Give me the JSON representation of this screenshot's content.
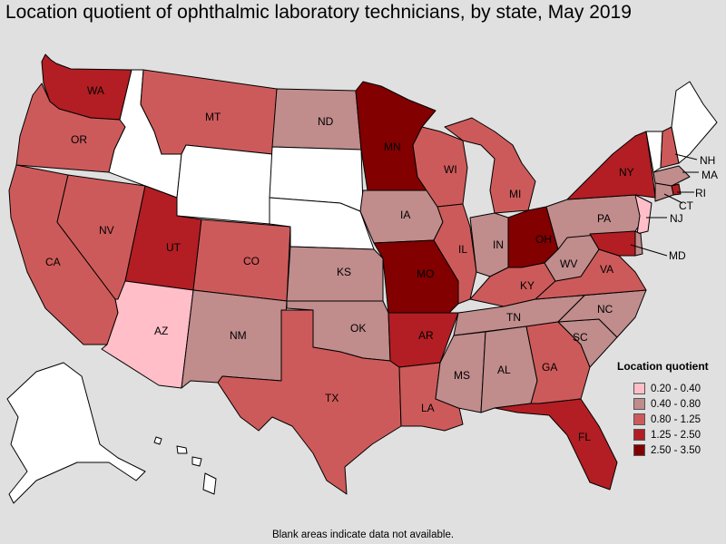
{
  "title": "Location quotient of ophthalmic laboratory technicians, by state, May 2019",
  "legend": {
    "title": "Location quotient",
    "items": [
      {
        "label": "0.20 - 0.40",
        "color": "#ffbec8"
      },
      {
        "label": "0.40 - 0.80",
        "color": "#c08c8c"
      },
      {
        "label": "0.80 - 1.25",
        "color": "#cd5a5a"
      },
      {
        "label": "1.25 - 2.50",
        "color": "#b21e23"
      },
      {
        "label": "2.50 - 3.50",
        "color": "#820000"
      }
    ]
  },
  "note": "Blank areas indicate data not available.",
  "states": {
    "WA": {
      "cls": 3
    },
    "OR": {
      "cls": 2
    },
    "CA": {
      "cls": 2
    },
    "NV": {
      "cls": 2
    },
    "ID": {
      "cls": null
    },
    "MT": {
      "cls": 2
    },
    "WY": {
      "cls": null
    },
    "UT": {
      "cls": 3
    },
    "AZ": {
      "cls": 0
    },
    "CO": {
      "cls": 2
    },
    "NM": {
      "cls": 1
    },
    "ND": {
      "cls": 1
    },
    "SD": {
      "cls": null
    },
    "NE": {
      "cls": null
    },
    "KS": {
      "cls": 1
    },
    "OK": {
      "cls": 1
    },
    "TX": {
      "cls": 2
    },
    "MN": {
      "cls": 4
    },
    "IA": {
      "cls": 1
    },
    "MO": {
      "cls": 4
    },
    "AR": {
      "cls": 3
    },
    "LA": {
      "cls": 2
    },
    "WI": {
      "cls": 2
    },
    "IL": {
      "cls": 2
    },
    "MI": {
      "cls": 2
    },
    "IN": {
      "cls": 1
    },
    "OH": {
      "cls": 4
    },
    "KY": {
      "cls": 2
    },
    "TN": {
      "cls": 1
    },
    "MS": {
      "cls": 1
    },
    "AL": {
      "cls": 1
    },
    "GA": {
      "cls": 2
    },
    "FL": {
      "cls": 3
    },
    "SC": {
      "cls": 1
    },
    "NC": {
      "cls": 1
    },
    "VA": {
      "cls": 2
    },
    "WV": {
      "cls": 1
    },
    "PA": {
      "cls": 1
    },
    "NY": {
      "cls": 3
    },
    "VT": {
      "cls": null
    },
    "NH": {
      "cls": 2
    },
    "ME": {
      "cls": null
    },
    "MA": {
      "cls": 1
    },
    "RI": {
      "cls": 3
    },
    "CT": {
      "cls": 1
    },
    "NJ": {
      "cls": 0
    },
    "DE": {
      "cls": 1
    },
    "MD": {
      "cls": 3
    },
    "AK": {
      "cls": null
    },
    "HI": {
      "cls": null
    }
  },
  "labels": {
    "WA": "WA",
    "OR": "OR",
    "CA": "CA",
    "NV": "NV",
    "MT": "MT",
    "UT": "UT",
    "AZ": "AZ",
    "CO": "CO",
    "NM": "NM",
    "ND": "ND",
    "KS": "KS",
    "OK": "OK",
    "TX": "TX",
    "MN": "MN",
    "IA": "IA",
    "MO": "MO",
    "AR": "AR",
    "LA": "LA",
    "WI": "WI",
    "IL": "IL",
    "MI": "MI",
    "IN": "IN",
    "OH": "OH",
    "KY": "KY",
    "TN": "TN",
    "MS": "MS",
    "AL": "AL",
    "GA": "GA",
    "FL": "FL",
    "SC": "SC",
    "NC": "NC",
    "VA": "VA",
    "WV": "WV",
    "PA": "PA",
    "NY": "NY",
    "NH": "NH",
    "MA": "MA",
    "RI": "RI",
    "CT": "CT",
    "NJ": "NJ",
    "MD": "MD"
  }
}
